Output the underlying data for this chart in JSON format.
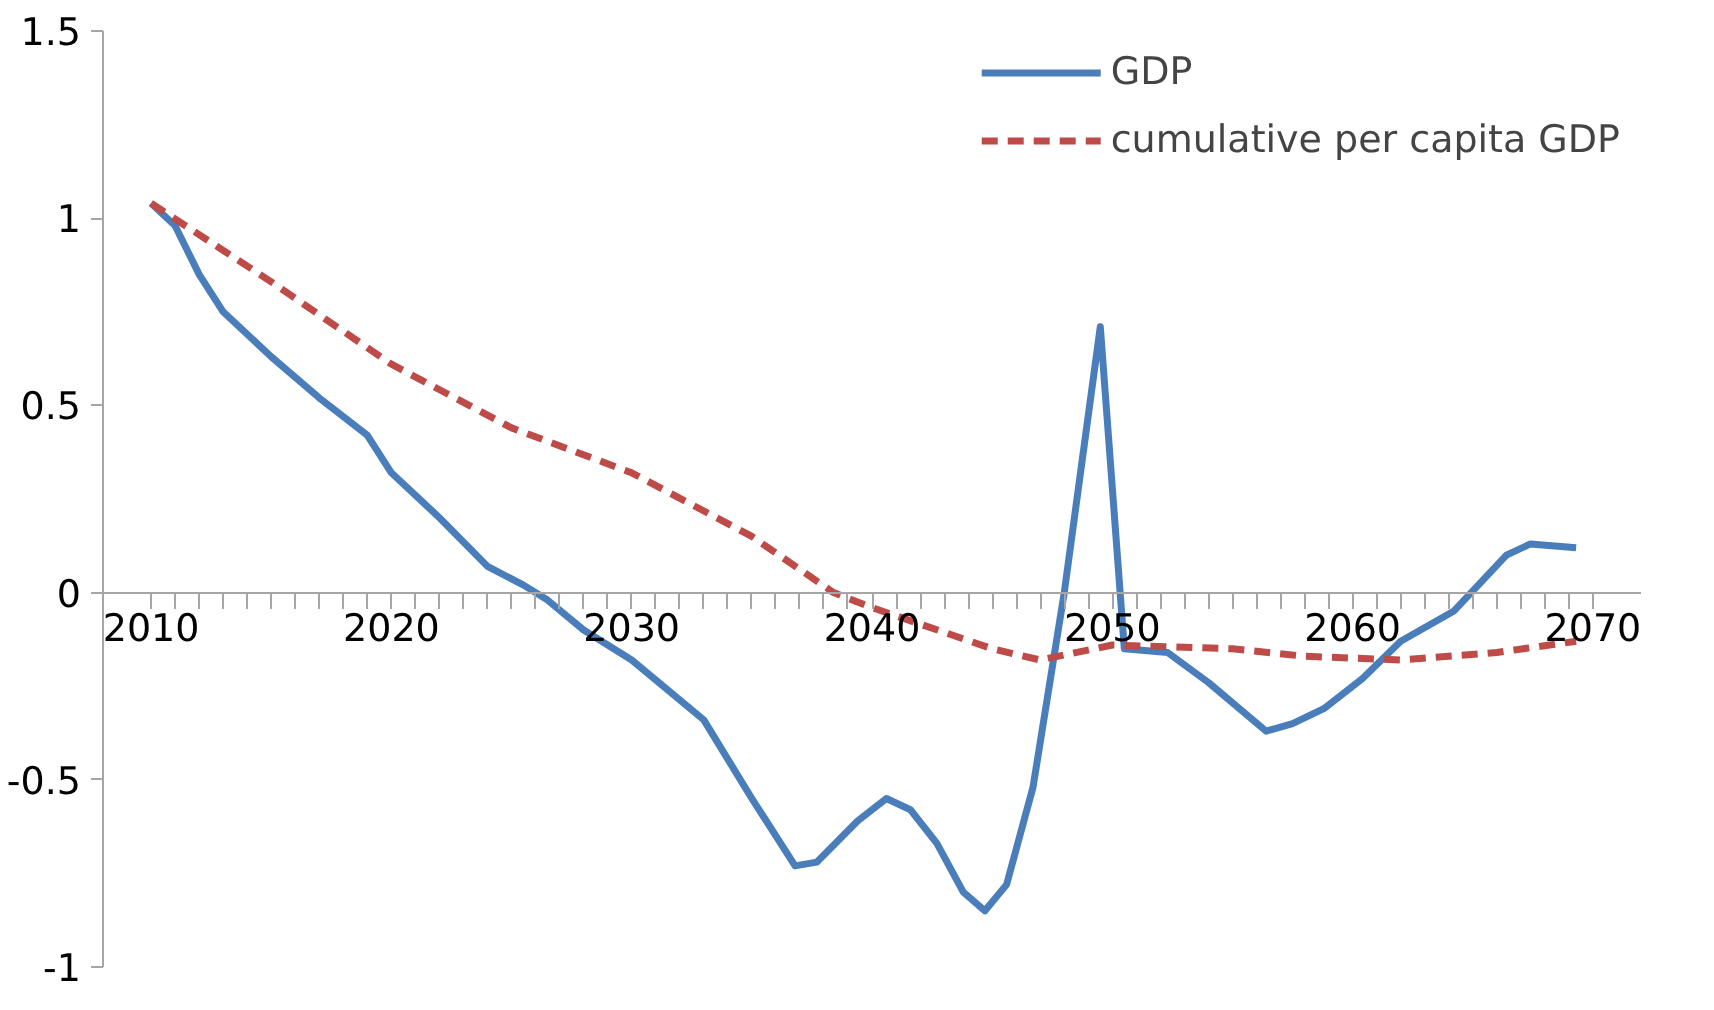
{
  "chart_data": {
    "type": "line",
    "xlim": [
      2008,
      2072
    ],
    "xticks": [
      2010,
      2020,
      2030,
      2040,
      2050,
      2060,
      2070
    ],
    "ylim": [
      -1,
      1.5
    ],
    "yticks": [
      -1,
      {
        "value": -0.5,
        "label": "-0.5"
      },
      0,
      {
        "value": 0.5,
        "label": "0.5"
      },
      1,
      {
        "value": 1.5,
        "label": "1.5"
      }
    ],
    "grid": false,
    "legend": "top right",
    "series": [
      {
        "name": "GDP",
        "color": "#4a7ebb",
        "line_style": "solid",
        "x": [
          2010,
          2011,
          2012,
          2013,
          2015,
          2017,
          2019,
          2020,
          2022,
          2024,
          2025.5,
          2026.5,
          2028,
          2030,
          2033,
          2035,
          2036.8,
          2037.7,
          2039.4,
          2040.6,
          2041.6,
          2042.7,
          2043.8,
          2044.7,
          2045.6,
          2046.7,
          2048,
          2049.5,
          2050.5,
          2052.3,
          2054,
          2056.4,
          2057.5,
          2058.8,
          2060.4,
          2062,
          2064.2,
          2066.4,
          2067.4,
          2069.3
        ],
        "values": [
          1.04,
          0.98,
          0.85,
          0.75,
          0.63,
          0.52,
          0.42,
          0.32,
          0.2,
          0.07,
          0.02,
          -0.02,
          -0.1,
          -0.18,
          -0.34,
          -0.55,
          -0.73,
          -0.72,
          -0.61,
          -0.55,
          -0.58,
          -0.67,
          -0.8,
          -0.85,
          -0.78,
          -0.52,
          0,
          0.71,
          -0.15,
          -0.16,
          -0.24,
          -0.37,
          -0.35,
          -0.31,
          -0.23,
          -0.13,
          -0.05,
          0.1,
          0.13,
          0.12
        ]
      },
      {
        "name": "cumulative per capita GDP",
        "color": "#be4b48",
        "line_style": "dashed",
        "x": [
          2010,
          2015,
          2020,
          2025,
          2030,
          2035,
          2038.4,
          2040,
          2045,
          2047,
          2050,
          2055,
          2058,
          2062,
          2066,
          2069.3
        ],
        "values": [
          1.04,
          0.83,
          0.61,
          0.44,
          0.32,
          0.15,
          0,
          -0.04,
          -0.15,
          -0.18,
          -0.14,
          -0.15,
          -0.17,
          -0.18,
          -0.16,
          -0.13
        ]
      }
    ]
  }
}
